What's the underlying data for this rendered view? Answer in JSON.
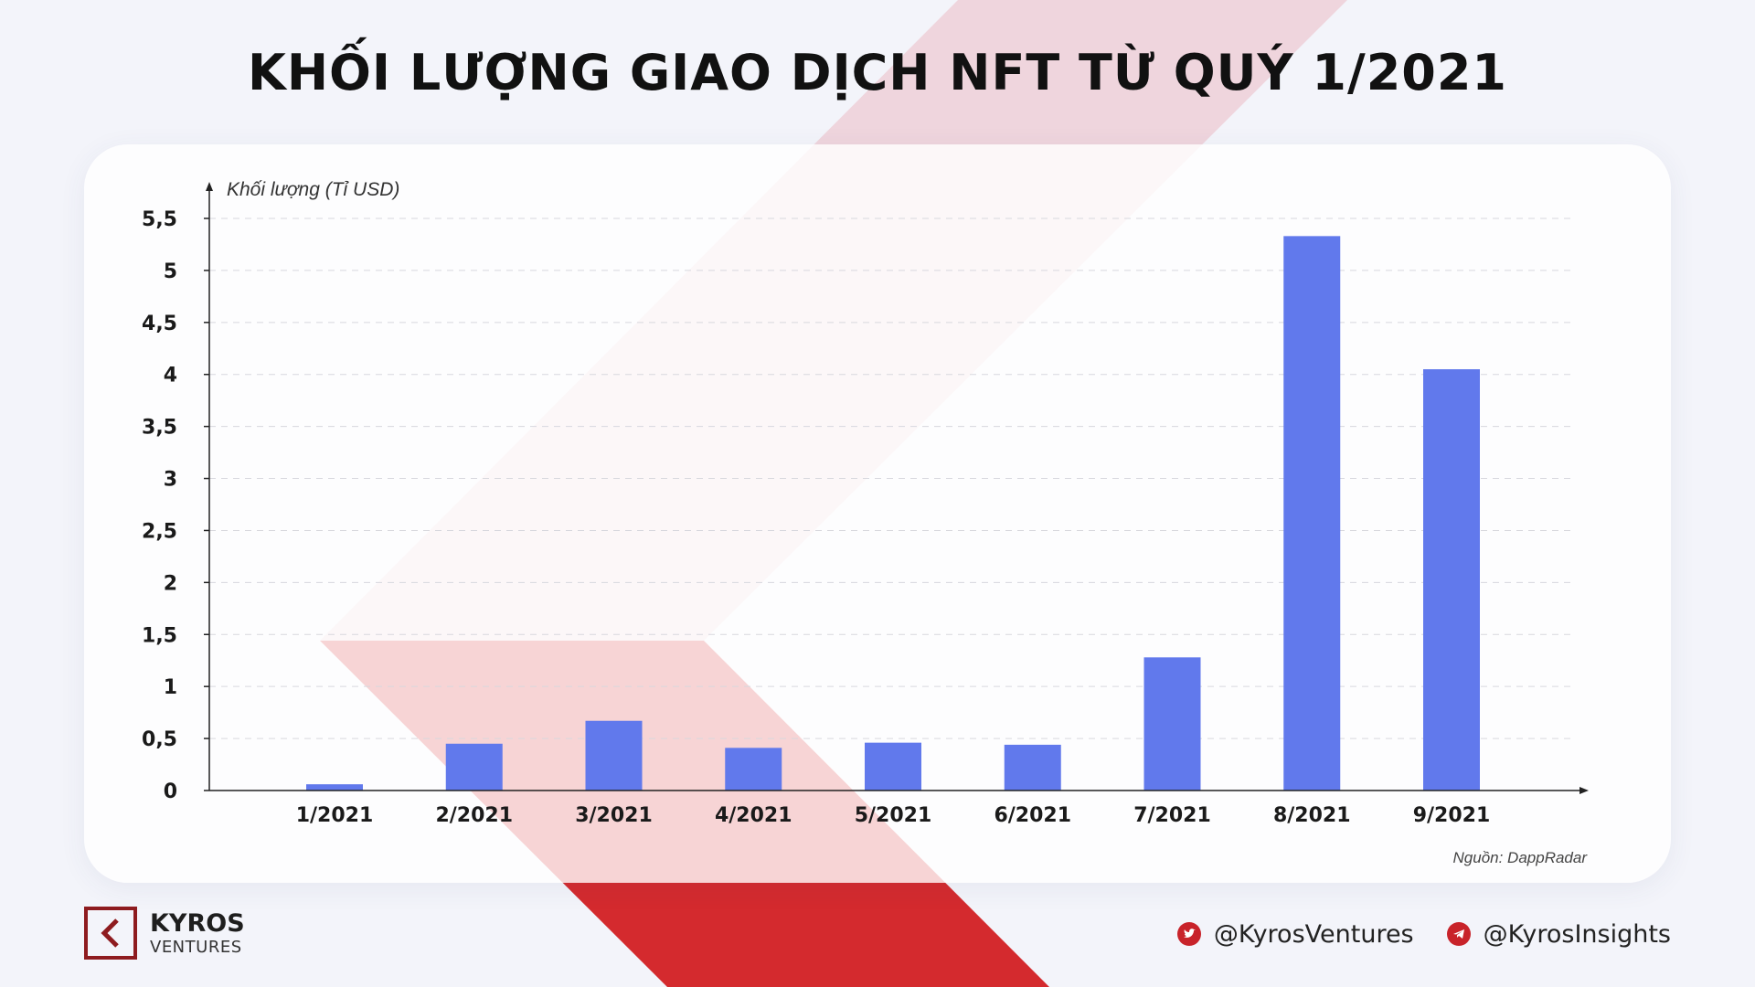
{
  "title": "KHỐI LƯỢNG GIAO DỊCH NFT TỪ QUÝ 1/2021",
  "colors": {
    "bar": "#6179ec",
    "accent": "#d42a2e",
    "brand_dark": "#8e1b1f",
    "background": "#f3f4fa"
  },
  "chart_data": {
    "type": "bar",
    "title": "KHỐI LƯỢNG GIAO DỊCH NFT TỪ QUÝ 1/2021",
    "ylabel": "Khối lượng (Tỉ USD)",
    "xlabel": "",
    "categories": [
      "1/2021",
      "2/2021",
      "3/2021",
      "4/2021",
      "5/2021",
      "6/2021",
      "7/2021",
      "8/2021",
      "9/2021"
    ],
    "values": [
      0.06,
      0.45,
      0.67,
      0.41,
      0.46,
      0.44,
      1.28,
      5.33,
      4.05
    ],
    "ylim": [
      0,
      5.5
    ],
    "yticks": [
      "0",
      "0,5",
      "1",
      "1,5",
      "2",
      "2,5",
      "3",
      "3,5",
      "4",
      "4,5",
      "5",
      "5,5"
    ],
    "ytick_values": [
      0,
      0.5,
      1,
      1.5,
      2,
      2.5,
      3,
      3.5,
      4,
      4.5,
      5,
      5.5
    ],
    "grid": true,
    "gridline_style": "dashed",
    "legend": "none"
  },
  "source": "Nguồn: DappRadar",
  "brand": {
    "name": "KYROS",
    "sub": "VENTURES",
    "icon": "kyros-logo-icon"
  },
  "socials": [
    {
      "icon": "twitter-icon",
      "handle": "@KyrosVentures"
    },
    {
      "icon": "telegram-icon",
      "handle": "@KyrosInsights"
    }
  ]
}
